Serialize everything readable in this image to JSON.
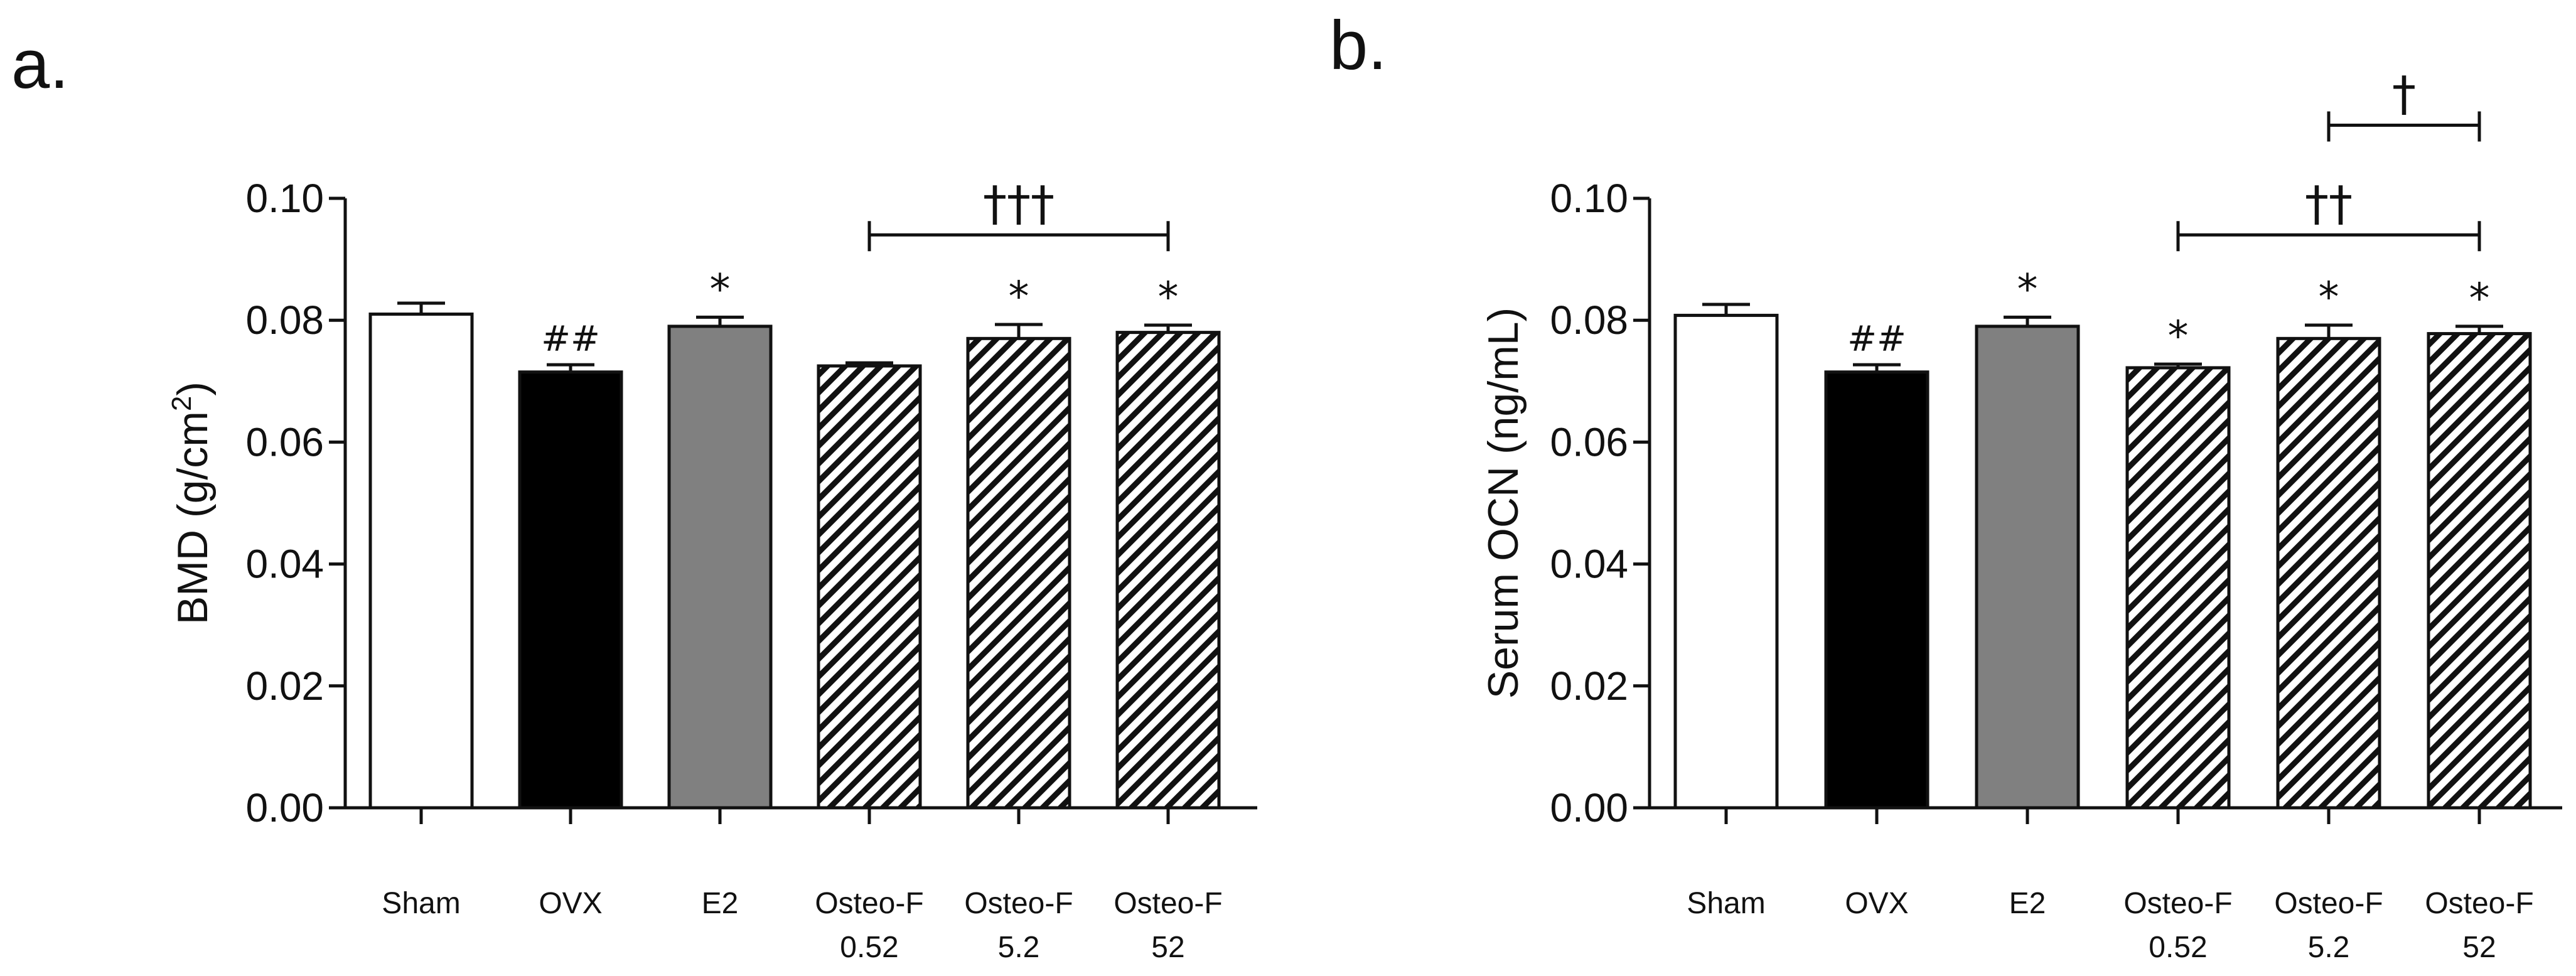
{
  "chart_data": [
    {
      "type": "bar",
      "panel_label": "a.",
      "ylabel_main": "BMD (g/cm",
      "ylabel_sup": "2",
      "ylabel_end": ")",
      "ylim": [
        0,
        0.1
      ],
      "yticks": [
        "0.00",
        "0.02",
        "0.04",
        "0.06",
        "0.08",
        "0.10"
      ],
      "categories": [
        {
          "line1": "Sham",
          "line2": ""
        },
        {
          "line1": "OVX",
          "line2": ""
        },
        {
          "line1": "E2",
          "line2": ""
        },
        {
          "line1": "Osteo-F",
          "line2": "0.52"
        },
        {
          "line1": "Osteo-F",
          "line2": "5.2"
        },
        {
          "line1": "Osteo-F",
          "line2": "52"
        }
      ],
      "values": [
        0.081,
        0.0715,
        0.079,
        0.0725,
        0.077,
        0.078
      ],
      "errors": [
        0.0018,
        0.0012,
        0.0015,
        0.0005,
        0.0023,
        0.0012
      ],
      "fills": [
        "white",
        "black",
        "gray",
        "hatch",
        "hatch",
        "hatch"
      ],
      "bar_marks": [
        "",
        "##",
        "*",
        "",
        "*",
        "*"
      ],
      "brackets": [
        {
          "from": 3,
          "to": 5,
          "level": 0.094,
          "label": "†††"
        }
      ]
    },
    {
      "type": "bar",
      "panel_label": "b.",
      "ylabel_main": "Serum OCN (ng/mL)",
      "ylabel_sup": "",
      "ylabel_end": "",
      "ylim": [
        0,
        0.1
      ],
      "yticks": [
        "0.00",
        "0.02",
        "0.04",
        "0.06",
        "0.08",
        "0.10"
      ],
      "categories": [
        {
          "line1": "Sham",
          "line2": ""
        },
        {
          "line1": "OVX",
          "line2": ""
        },
        {
          "line1": "E2",
          "line2": ""
        },
        {
          "line1": "Osteo-F",
          "line2": "0.52"
        },
        {
          "line1": "Osteo-F",
          "line2": "5.2"
        },
        {
          "line1": "Osteo-F",
          "line2": "52"
        }
      ],
      "values": [
        0.0808,
        0.0715,
        0.079,
        0.0722,
        0.077,
        0.0778
      ],
      "errors": [
        0.0018,
        0.0012,
        0.0015,
        0.0006,
        0.0022,
        0.0012
      ],
      "fills": [
        "white",
        "black",
        "gray",
        "hatch",
        "hatch",
        "hatch"
      ],
      "bar_marks": [
        "",
        "##",
        "*",
        "*",
        "*",
        "*"
      ],
      "brackets": [
        {
          "from": 3,
          "to": 5,
          "level": 0.094,
          "label": "††"
        },
        {
          "from": 4,
          "to": 5,
          "level": 0.112,
          "label": "†"
        }
      ]
    }
  ],
  "colors": {
    "axis": "#111111",
    "gray_bar": "#808080",
    "black_bar": "#000000",
    "white_bar": "#ffffff"
  }
}
